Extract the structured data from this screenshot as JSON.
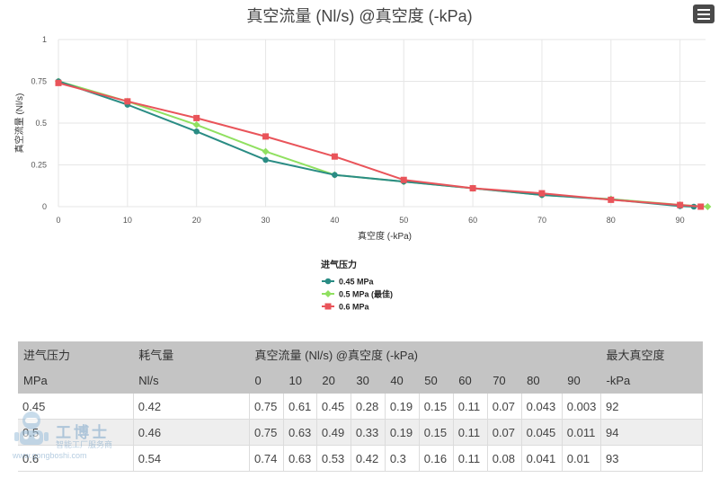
{
  "chart_data": {
    "type": "line",
    "title": "真空流量 (Nl/s) @真空度 (-kPa)",
    "xlabel": "真空度 (-kPa)",
    "ylabel": "真空流量 (Nl/s)",
    "x_ticks": [
      0,
      10,
      20,
      30,
      40,
      50,
      60,
      70,
      80,
      90
    ],
    "y_ticks": [
      0,
      0.25,
      0.5,
      0.75,
      1
    ],
    "y_tick_labels": [
      "0",
      "0.25",
      "0.5",
      "0.75",
      "1"
    ],
    "xlim": [
      0,
      95
    ],
    "ylim": [
      0,
      1
    ],
    "grid": true,
    "legend_title": "进气压力",
    "legend_position": "bottom-center",
    "series": [
      {
        "name": "0.45 MPa",
        "color": "#2a8c84",
        "marker": "circle",
        "x": [
          0,
          10,
          20,
          30,
          40,
          50,
          60,
          70,
          80,
          90,
          92
        ],
        "y": [
          0.75,
          0.61,
          0.45,
          0.28,
          0.19,
          0.15,
          0.11,
          0.07,
          0.043,
          0.003,
          0
        ]
      },
      {
        "name": "0.5 MPa (最佳)",
        "color": "#90e060",
        "marker": "diamond",
        "x": [
          0,
          10,
          20,
          30,
          40,
          50,
          60,
          70,
          80,
          90,
          94
        ],
        "y": [
          0.75,
          0.63,
          0.49,
          0.33,
          0.19,
          0.15,
          0.11,
          0.07,
          0.045,
          0.011,
          0
        ]
      },
      {
        "name": "0.6 MPa",
        "color": "#e9545a",
        "marker": "square",
        "x": [
          0,
          10,
          20,
          30,
          40,
          50,
          60,
          70,
          80,
          90,
          93
        ],
        "y": [
          0.74,
          0.63,
          0.53,
          0.42,
          0.3,
          0.16,
          0.11,
          0.08,
          0.041,
          0.01,
          0
        ]
      }
    ]
  },
  "toolbar": {
    "menu_icon": "hamburger-menu-icon"
  },
  "table": {
    "header_row1": {
      "pressure": "进气压力",
      "consumption": "耗气量",
      "flow": "真空流量 (Nl/s) @真空度 (-kPa)",
      "max_vacuum": "最大真空度"
    },
    "header_row2": [
      "MPa",
      "Nl/s",
      "0",
      "10",
      "20",
      "30",
      "40",
      "50",
      "60",
      "70",
      "80",
      "90",
      "-kPa"
    ],
    "rows": [
      [
        "0.45",
        "0.42",
        "0.75",
        "0.61",
        "0.45",
        "0.28",
        "0.19",
        "0.15",
        "0.11",
        "0.07",
        "0.043",
        "0.003",
        "92"
      ],
      [
        "0.5",
        "0.46",
        "0.75",
        "0.63",
        "0.49",
        "0.33",
        "0.19",
        "0.15",
        "0.11",
        "0.07",
        "0.045",
        "0.011",
        "94"
      ],
      [
        "0.6",
        "0.54",
        "0.74",
        "0.63",
        "0.53",
        "0.42",
        "0.3",
        "0.16",
        "0.11",
        "0.08",
        "0.041",
        "0.01",
        "93"
      ]
    ]
  },
  "watermark": {
    "name": "工博士",
    "tagline": "智能工厂服务商",
    "url": "www.gongboshi.com"
  }
}
